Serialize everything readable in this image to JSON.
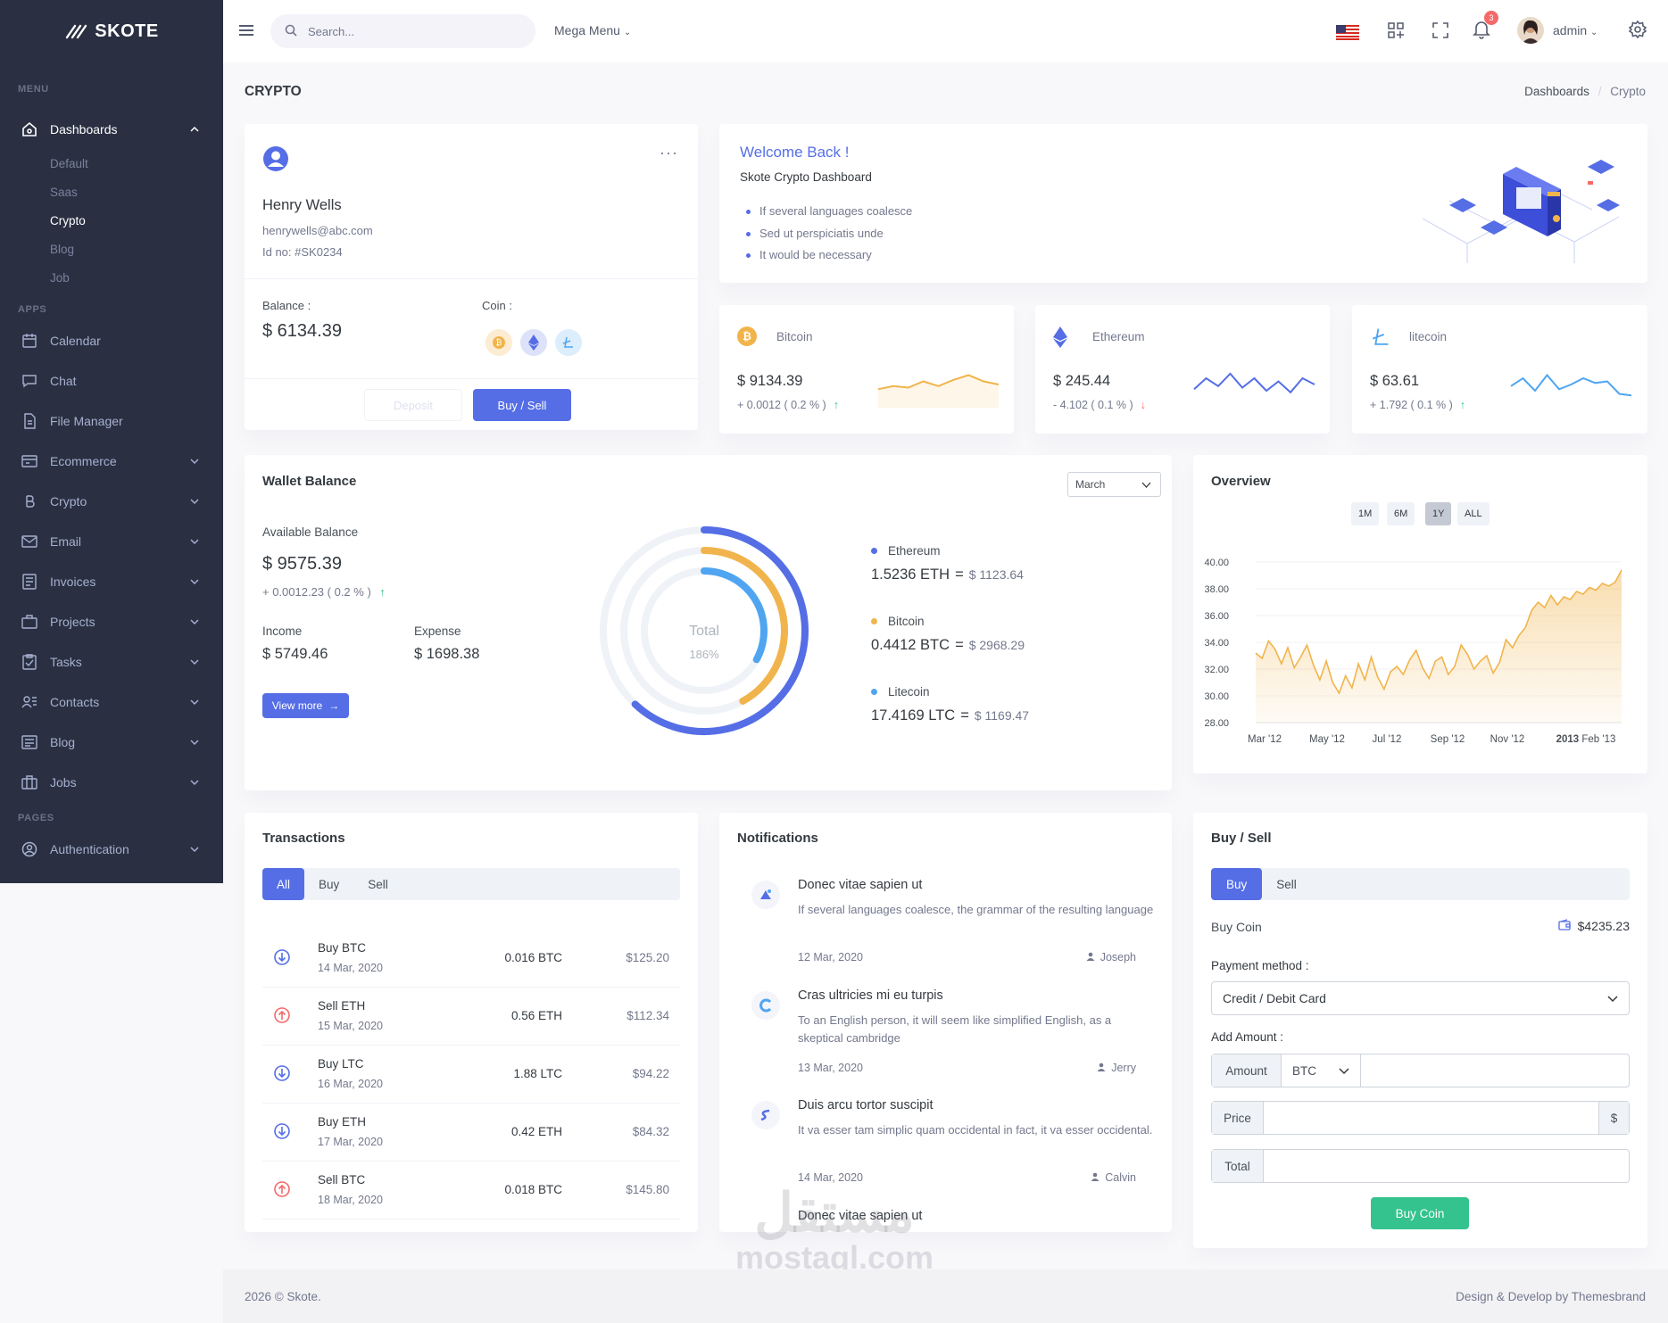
{
  "brand": {
    "name": "SKOTE"
  },
  "sidebar": {
    "section_menu": "MENU",
    "section_apps": "APPS",
    "section_pages": "PAGES",
    "dashboards": "Dashboards",
    "dash_subs": [
      "Default",
      "Saas",
      "Crypto",
      "Blog",
      "Job"
    ],
    "apps": [
      "Calendar",
      "Chat",
      "File Manager",
      "Ecommerce",
      "Crypto",
      "Email",
      "Invoices",
      "Projects",
      "Tasks",
      "Contacts",
      "Blog",
      "Jobs"
    ],
    "pages": [
      "Authentication"
    ]
  },
  "topbar": {
    "search_placeholder": "Search...",
    "mega_menu": "Mega Menu",
    "notif_count": "3",
    "user": "admin"
  },
  "page": {
    "title": "CRYPTO",
    "breadcrumb": [
      "Dashboards",
      "Crypto"
    ]
  },
  "profile": {
    "name": "Henry Wells",
    "email": "henrywells@abc.com",
    "id": "Id no: #SK0234",
    "balance_label": "Balance :",
    "balance": "$ 6134.39",
    "coin_label": "Coin :",
    "deposit": "Deposit",
    "buy_sell": "Buy / Sell"
  },
  "welcome": {
    "title": "Welcome Back !",
    "subtitle": "Skote Crypto Dashboard",
    "items": [
      "If several languages coalesce",
      "Sed ut perspiciatis unde",
      "It would be necessary"
    ]
  },
  "coins": [
    {
      "name": "Bitcoin",
      "price": "$ 9134.39",
      "change": "+ 0.0012 ( 0.2 % )",
      "dir": "up",
      "color": "#f1b44c"
    },
    {
      "name": "Ethereum",
      "price": "$ 245.44",
      "change": "- 4.102 ( 0.1 % )",
      "dir": "down",
      "color": "#556ee6"
    },
    {
      "name": "litecoin",
      "price": "$ 63.61",
      "change": "+ 1.792 ( 0.1 % )",
      "dir": "up",
      "color": "#50a5f1"
    }
  ],
  "wallet": {
    "title": "Wallet Balance",
    "month": "March",
    "available_label": "Available Balance",
    "available": "$ 9575.39",
    "change": "+ 0.0012.23 ( 0.2 % )",
    "income_label": "Income",
    "income": "$ 5749.46",
    "expense_label": "Expense",
    "expense": "$ 1698.38",
    "view_more": "View more",
    "total_label": "Total",
    "total_pct": "186%",
    "assets": [
      {
        "name": "Ethereum",
        "amount": "1.5236 ETH",
        "value": "$ 1123.64",
        "color": "#556ee6"
      },
      {
        "name": "Bitcoin",
        "amount": "0.4412 BTC",
        "value": "$ 2968.29",
        "color": "#f1b44c"
      },
      {
        "name": "Litecoin",
        "amount": "17.4169 LTC",
        "value": "$ 1169.47",
        "color": "#50a5f1"
      }
    ]
  },
  "overview": {
    "title": "Overview",
    "ranges": [
      "1M",
      "6M",
      "1Y",
      "ALL"
    ],
    "active_range": "1Y"
  },
  "chart_data": {
    "type": "area",
    "title": "Overview",
    "y_ticks": [
      "40.00",
      "38.00",
      "36.00",
      "34.00",
      "32.00",
      "30.00",
      "28.00"
    ],
    "ylim": [
      28,
      40
    ],
    "x_ticks": [
      "Mar '12",
      "May '12",
      "Jul '12",
      "Sep '12",
      "Nov '12",
      "2013 Feb '13"
    ],
    "series": [
      {
        "values": [
          33.2,
          32.8,
          34.1,
          33.5,
          32.4,
          33.6,
          32.1,
          32.9,
          33.8,
          32.3,
          31.2,
          32.6,
          31.0,
          30.2,
          31.5,
          30.6,
          32.4,
          31.2,
          32.9,
          31.4,
          30.5,
          31.8,
          32.2,
          31.6,
          32.7,
          33.4,
          32.1,
          31.3,
          32.6,
          32.9,
          31.6,
          32.2,
          33.8,
          33.1,
          32.0,
          32.6,
          33.0,
          31.7,
          32.5,
          34.2,
          33.6,
          34.5,
          35.1,
          36.4,
          37.0,
          36.6,
          37.5,
          36.8,
          37.4,
          37.2,
          37.8,
          37.6,
          38.1,
          37.9,
          38.4,
          38.2,
          38.5,
          39.4
        ]
      }
    ]
  },
  "transactions": {
    "title": "Transactions",
    "tabs": [
      "All",
      "Buy",
      "Sell"
    ],
    "rows": [
      {
        "type": "buy",
        "name": "Buy BTC",
        "date": "14 Mar, 2020",
        "amount": "0.016 BTC",
        "value": "$125.20"
      },
      {
        "type": "sell",
        "name": "Sell ETH",
        "date": "15 Mar, 2020",
        "amount": "0.56 ETH",
        "value": "$112.34"
      },
      {
        "type": "buy",
        "name": "Buy LTC",
        "date": "16 Mar, 2020",
        "amount": "1.88 LTC",
        "value": "$94.22"
      },
      {
        "type": "buy",
        "name": "Buy ETH",
        "date": "17 Mar, 2020",
        "amount": "0.42 ETH",
        "value": "$84.32"
      },
      {
        "type": "sell",
        "name": "Sell BTC",
        "date": "18 Mar, 2020",
        "amount": "0.018 BTC",
        "value": "$145.80"
      }
    ]
  },
  "notifications": {
    "title": "Notifications",
    "items": [
      {
        "title": "Donec vitae sapien ut",
        "body": "If several languages coalesce, the grammar of the resulting language",
        "date": "12 Mar, 2020",
        "user": "Joseph"
      },
      {
        "title": "Cras ultricies mi eu turpis",
        "body": "To an English person, it will seem like simplified English, as a skeptical cambridge",
        "date": "13 Mar, 2020",
        "user": "Jerry"
      },
      {
        "title": "Duis arcu tortor suscipit",
        "body": "It va esser tam simplic quam occidental in fact, it va esser occidental.",
        "date": "14 Mar, 2020",
        "user": "Calvin"
      },
      {
        "title": "Donec vitae sapien ut",
        "body": "",
        "date": "",
        "user": ""
      }
    ]
  },
  "buysell": {
    "title": "Buy / Sell",
    "tabs": [
      "Buy",
      "Sell"
    ],
    "buy_coin": "Buy Coin",
    "wallet_amount": "$4235.23",
    "payment_label": "Payment method :",
    "payment_value": "Credit / Debit Card",
    "add_amount": "Add Amount :",
    "amount_label": "Amount",
    "coin_select": "BTC",
    "price_label": "Price",
    "currency": "$",
    "total_label": "Total",
    "submit": "Buy Coin"
  },
  "footer": {
    "left": "2026 © Skote.",
    "right": "Design & Develop by Themesbrand"
  },
  "watermark": {
    "arabic": "مستقل",
    "latin": "mostaql.com"
  }
}
